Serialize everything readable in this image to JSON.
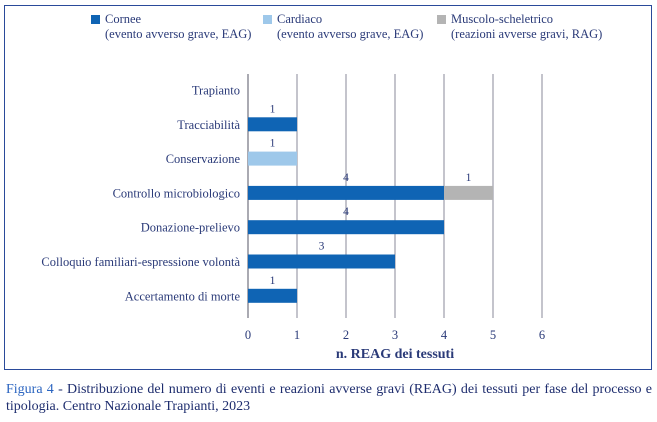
{
  "legend": [
    {
      "name": "Cornee",
      "sub": "(evento avverso grave, EAG)",
      "color": "#0f64b4"
    },
    {
      "name": "Cardiaco",
      "sub": "(evento avverso grave, EAG)",
      "color": "#9ec8ea"
    },
    {
      "name": "Muscolo-scheletrico",
      "sub": "(reazioni avverse gravi, RAG)",
      "color": "#b4b4b4"
    }
  ],
  "caption": {
    "figure_label": "Figura 4",
    "text": " - Distribuzione del numero di eventi e reazioni avverse gravi (REAG) dei tessuti per fase del processo e tipologia. Centro Nazionale Trapianti, 2023"
  },
  "chart_data": {
    "type": "bar",
    "orientation": "horizontal",
    "stacked": true,
    "categories": [
      "Trapianto",
      "Tracciabilità",
      "Conservazione",
      "Controllo microbiologico",
      "Donazione-prelievo",
      "Colloquio familiari-espressione volontà",
      "Accertamento di morte"
    ],
    "series": [
      {
        "name": "Cornee",
        "color": "#0f64b4",
        "values": [
          0,
          1,
          0,
          4,
          4,
          3,
          1
        ]
      },
      {
        "name": "Cardiaco",
        "color": "#9ec8ea",
        "values": [
          0,
          0,
          1,
          0,
          0,
          0,
          0
        ]
      },
      {
        "name": "Muscolo-scheletrico",
        "color": "#b4b4b4",
        "values": [
          0,
          0,
          0,
          1,
          0,
          0,
          0
        ]
      }
    ],
    "xlabel": "n. REAG dei tessuti",
    "xlim": [
      0,
      6
    ],
    "xticks": [
      "0",
      "1",
      "2",
      "3",
      "4",
      "5",
      "6"
    ],
    "grid": true
  }
}
